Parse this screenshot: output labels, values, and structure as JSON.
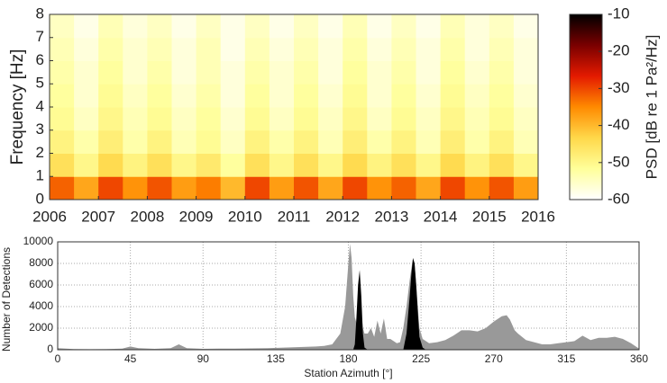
{
  "chart_data": [
    {
      "type": "heatmap",
      "xlabel": null,
      "ylabel": "Frequency [Hz]",
      "xlim": [
        2006,
        2016
      ],
      "xticks": [
        2006,
        2007,
        2008,
        2009,
        2010,
        2011,
        2012,
        2013,
        2014,
        2015,
        2016
      ],
      "ylim": [
        0,
        8
      ],
      "yticks": [
        0,
        1,
        2,
        3,
        4,
        5,
        6,
        7,
        8
      ],
      "clim": [
        -60,
        -10
      ],
      "cticks": [
        -10,
        -20,
        -30,
        -40,
        -50,
        -60
      ],
      "colorbar_label": "PSD [dB re 1 Pa²/Hz]",
      "colormap": [
        "#ffffff",
        "#ffff9a",
        "#ffd84a",
        "#ff8a00",
        "#e41a00",
        "#7a0000",
        "#000000"
      ],
      "values": [
        [
          -32,
          -38,
          -30,
          -36,
          -31,
          -37,
          -34,
          -40,
          -30,
          -37,
          -31,
          -38,
          -30,
          -36,
          -32,
          -38,
          -30,
          -36,
          -31,
          -37
        ],
        [
          -45,
          -50,
          -44,
          -49,
          -45,
          -50,
          -47,
          -52,
          -45,
          -50,
          -45,
          -50,
          -44,
          -49,
          -45,
          -50,
          -44,
          -49,
          -45,
          -50
        ],
        [
          -49,
          -53,
          -48,
          -53,
          -49,
          -54,
          -51,
          -55,
          -49,
          -53,
          -49,
          -54,
          -48,
          -53,
          -49,
          -54,
          -48,
          -53,
          -49,
          -54
        ],
        [
          -51,
          -55,
          -50,
          -54,
          -51,
          -55,
          -52,
          -56,
          -51,
          -55,
          -51,
          -55,
          -50,
          -55,
          -51,
          -55,
          -50,
          -54,
          -51,
          -55
        ],
        [
          -52,
          -56,
          -51,
          -55,
          -52,
          -56,
          -53,
          -57,
          -52,
          -56,
          -52,
          -56,
          -51,
          -56,
          -52,
          -56,
          -51,
          -55,
          -52,
          -56
        ],
        [
          -53,
          -56,
          -52,
          -56,
          -53,
          -57,
          -54,
          -57,
          -53,
          -56,
          -53,
          -57,
          -52,
          -56,
          -53,
          -57,
          -52,
          -56,
          -53,
          -57
        ],
        [
          -54,
          -57,
          -53,
          -56,
          -54,
          -57,
          -54,
          -58,
          -54,
          -57,
          -54,
          -57,
          -53,
          -57,
          -54,
          -57,
          -53,
          -57,
          -54,
          -57
        ],
        [
          -55,
          -58,
          -54,
          -57,
          -55,
          -58,
          -55,
          -58,
          -55,
          -58,
          -55,
          -58,
          -54,
          -58,
          -55,
          -58,
          -54,
          -57,
          -55,
          -58
        ]
      ]
    },
    {
      "type": "area",
      "xlabel": "Station Azimuth [°]",
      "ylabel": "Number of Detections",
      "xlim": [
        0,
        360
      ],
      "xticks": [
        0,
        45,
        90,
        135,
        180,
        225,
        270,
        315,
        360
      ],
      "ylim": [
        0,
        10000
      ],
      "yticks": [
        0,
        2000,
        4000,
        6000,
        8000,
        10000
      ],
      "grid": true,
      "x": [
        0,
        5,
        10,
        20,
        30,
        40,
        45,
        50,
        60,
        70,
        75,
        80,
        90,
        100,
        110,
        120,
        130,
        140,
        150,
        160,
        165,
        170,
        175,
        178,
        180,
        181,
        182,
        183,
        184,
        185,
        186,
        187,
        188,
        189,
        190,
        192,
        194,
        196,
        198,
        200,
        202,
        204,
        206,
        208,
        210,
        212,
        214,
        216,
        218,
        219,
        220,
        221,
        222,
        223,
        224,
        226,
        228,
        230,
        235,
        240,
        245,
        250,
        255,
        260,
        265,
        270,
        275,
        278,
        280,
        283,
        285,
        290,
        295,
        300,
        305,
        310,
        315,
        320,
        325,
        330,
        335,
        340,
        345,
        350,
        355,
        358,
        360
      ],
      "series": [
        {
          "color": "#999999",
          "values": [
            150,
            100,
            60,
            50,
            60,
            100,
            300,
            150,
            80,
            150,
            500,
            150,
            80,
            100,
            100,
            120,
            150,
            200,
            250,
            300,
            350,
            500,
            1500,
            4000,
            8000,
            9800,
            8500,
            5000,
            3000,
            2500,
            4000,
            4500,
            3500,
            2000,
            1500,
            1500,
            2000,
            1200,
            2700,
            1500,
            2900,
            1000,
            1000,
            800,
            600,
            700,
            2000,
            4000,
            6500,
            7500,
            8500,
            8000,
            6000,
            4000,
            2000,
            1000,
            800,
            600,
            700,
            900,
            1300,
            1800,
            1800,
            1700,
            2000,
            2600,
            3100,
            3200,
            2800,
            1800,
            1500,
            900,
            700,
            500,
            500,
            600,
            700,
            800,
            1300,
            900,
            1100,
            1100,
            1200,
            1000,
            600,
            300,
            100
          ]
        },
        {
          "color": "#000000",
          "values": [
            0,
            0,
            0,
            0,
            0,
            0,
            0,
            0,
            0,
            0,
            0,
            0,
            0,
            0,
            0,
            0,
            0,
            0,
            0,
            0,
            0,
            0,
            0,
            0,
            0,
            0,
            0,
            0,
            500,
            3000,
            6000,
            7400,
            5000,
            1500,
            200,
            0,
            0,
            0,
            0,
            0,
            0,
            0,
            0,
            0,
            0,
            0,
            0,
            1500,
            5000,
            7000,
            8500,
            8000,
            6000,
            3500,
            1200,
            200,
            0,
            0,
            0,
            0,
            0,
            0,
            0,
            0,
            0,
            0,
            0,
            0,
            0,
            0,
            0,
            0,
            0,
            0,
            0,
            0,
            0,
            0,
            0,
            0,
            0,
            0,
            0,
            0,
            0,
            0,
            0
          ]
        }
      ]
    }
  ]
}
